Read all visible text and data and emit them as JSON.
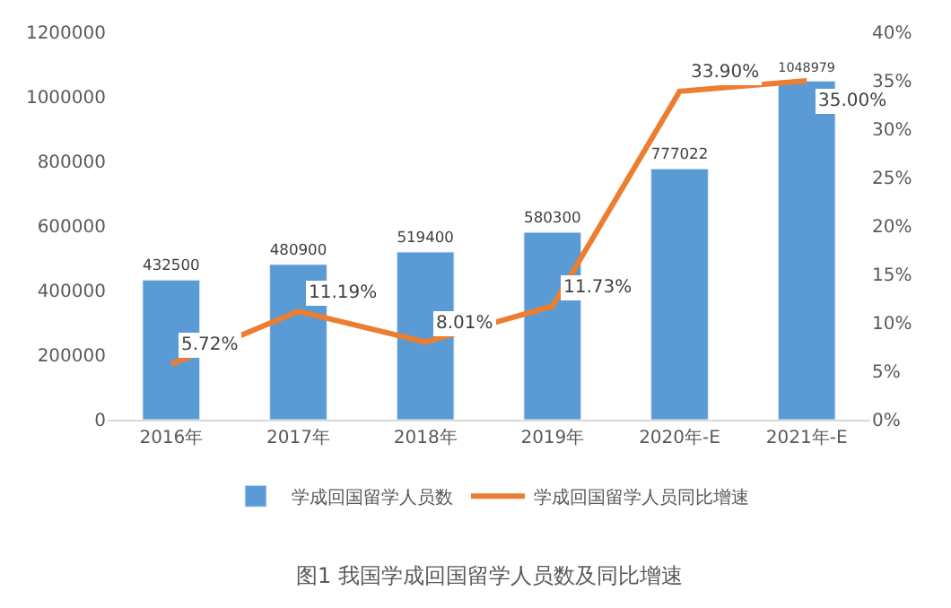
{
  "chart_data": {
    "type": "bar",
    "title": "图1 我国学成回国留学人员数及同比增速",
    "categories": [
      "2016年",
      "2017年",
      "2018年",
      "2019年",
      "2020年-E",
      "2021年-E"
    ],
    "series": [
      {
        "name": "学成回国留学人员数",
        "color": "#5b9bd5",
        "values": [
          432500,
          480900,
          519400,
          580300,
          777022,
          1048979
        ],
        "value_labels": [
          "432500",
          "480900",
          "519400",
          "580300",
          "777022",
          "1048979"
        ]
      },
      {
        "name": "学成回国留学人员同比增速",
        "type": "line",
        "axis": "y2",
        "color": "#ed7d31",
        "values": [
          5.72,
          11.19,
          8.01,
          11.73,
          33.9,
          35.0
        ],
        "value_labels": [
          "5.72%",
          "11.19%",
          "8.01%",
          "11.73%",
          "33.90%",
          "35.00%"
        ]
      }
    ],
    "ylim": [
      0,
      1200000
    ],
    "yticks": [
      0,
      200000,
      400000,
      600000,
      800000,
      1000000,
      1200000
    ],
    "y2lim": [
      0,
      40
    ],
    "y2ticks": [
      {
        "value": 0,
        "label": "0%"
      },
      {
        "value": 5,
        "label": "5%"
      },
      {
        "value": 10,
        "label": "10%"
      },
      {
        "value": 15,
        "label": "15%"
      },
      {
        "value": 20,
        "label": "20%"
      },
      {
        "value": 25,
        "label": "25%"
      },
      {
        "value": 30,
        "label": "30%"
      },
      {
        "value": 35,
        "label": "35%"
      },
      {
        "value": 40,
        "label": "40%"
      }
    ],
    "legend": "bottom",
    "marker": "none",
    "line_style": "solid"
  }
}
